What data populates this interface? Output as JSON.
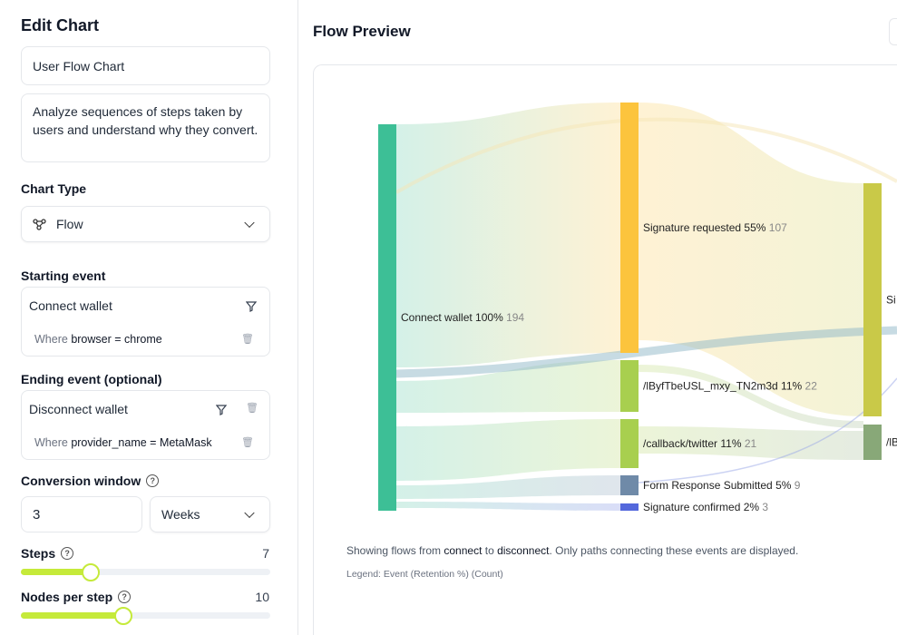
{
  "editor": {
    "title": "Edit Chart",
    "chart_name": "User Flow Chart",
    "description": "Analyze sequences of steps taken by users and understand why they convert.",
    "chart_type_label": "Chart Type",
    "chart_type": "Flow",
    "starting_label": "Starting event",
    "starting_event": "Connect wallet",
    "starting_where": "Where",
    "starting_prop": "browser = chrome",
    "ending_label": "Ending event (optional)",
    "ending_event": "Disconnect wallet",
    "ending_where": "Where",
    "ending_prop": "provider_name = MetaMask",
    "conv_label": "Conversion window",
    "conv_value": "3",
    "conv_unit": "Weeks",
    "steps_label": "Steps",
    "steps_value": "7",
    "steps_fraction": 0.28,
    "nodes_label": "Nodes per step",
    "nodes_value": "10",
    "nodes_fraction": 0.41
  },
  "preview": {
    "title": "Flow Preview",
    "caption_pre": "Showing flows from ",
    "caption_from": "connect",
    "caption_mid": " to ",
    "caption_to": "disconnect",
    "caption_post": ". Only paths connecting these events are displayed.",
    "legend": "Legend: Event (Retention %) (Count)"
  },
  "chart_data": {
    "type": "sankey",
    "nodes": [
      {
        "id": "cw",
        "label": "Connect wallet",
        "pct": "100%",
        "count": "194",
        "step": 0,
        "color": "#3dbf96"
      },
      {
        "id": "sr",
        "label": "Signature requested",
        "pct": "55%",
        "count": "107",
        "step": 1,
        "color": "#fcc43d"
      },
      {
        "id": "lb",
        "label": "/lByfTbeUSL_mxy_TN2m3d",
        "pct": "11%",
        "count": "22",
        "step": 1,
        "color": "#a8cf4f"
      },
      {
        "id": "tw",
        "label": "/callback/twitter",
        "pct": "11%",
        "count": "21",
        "step": 1,
        "color": "#a8cf4f"
      },
      {
        "id": "fr",
        "label": "Form Response Submitted",
        "pct": "5%",
        "count": "9",
        "step": 1,
        "color": "#6f8aa8"
      },
      {
        "id": "sc",
        "label": "Signature confirmed",
        "pct": "2%",
        "count": "3",
        "step": 1,
        "color": "#5468dc"
      },
      {
        "id": "s2a",
        "label": "Si",
        "pct": "",
        "count": "",
        "step": 2,
        "color": "#c9c948"
      },
      {
        "id": "s2b",
        "label": "/lB",
        "pct": "",
        "count": "",
        "step": 2,
        "color": "#88a878"
      }
    ],
    "links": [
      [
        "cw",
        "sr"
      ],
      [
        "cw",
        "lb"
      ],
      [
        "cw",
        "tw"
      ],
      [
        "cw",
        "fr"
      ],
      [
        "cw",
        "sc"
      ],
      [
        "sr",
        "s2a"
      ],
      [
        "lb",
        "s2b"
      ],
      [
        "tw",
        "s2b"
      ]
    ]
  }
}
